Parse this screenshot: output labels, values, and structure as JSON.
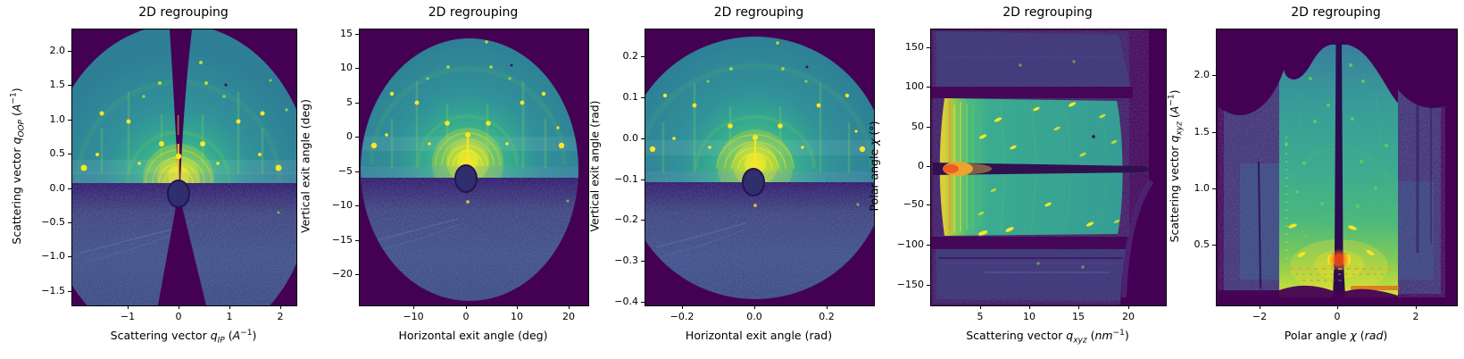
{
  "panels": [
    {
      "title": "2D regrouping",
      "ylabel": {
        "pre": "Scattering vector ",
        "var": "q",
        "sub": "OOP",
        "mid": " (",
        "unit": "A",
        "sup": "−1",
        "end": ")"
      },
      "xlabel": {
        "pre": "Scattering vector ",
        "var": "q",
        "sub": "IP",
        "mid": " (",
        "unit": "A",
        "sup": "−1",
        "end": ")"
      },
      "yticks": [
        "2.0",
        "1.5",
        "1.0",
        "0.5",
        "0.0",
        "−0.5",
        "−1.0",
        "−1.5"
      ],
      "xticks": [
        "−1",
        "0",
        "1",
        "2"
      ]
    },
    {
      "title": "2D regrouping",
      "ylabel": {
        "pre": "Vertical exit angle (deg)"
      },
      "xlabel": {
        "pre": "Horizontal exit angle (deg)"
      },
      "yticks": [
        "15",
        "10",
        "5",
        "0",
        "−5",
        "−10",
        "−15",
        "−20"
      ],
      "xticks": [
        "−10",
        "0",
        "10",
        "20"
      ]
    },
    {
      "title": "2D regrouping",
      "ylabel": {
        "pre": "Vertical exit angle (rad)"
      },
      "xlabel": {
        "pre": "Horizontal exit angle (rad)"
      },
      "yticks": [
        "0.2",
        "0.1",
        "0.0",
        "−0.1",
        "−0.2",
        "−0.3",
        "−0.4"
      ],
      "xticks": [
        "−0.2",
        "0.0",
        "0.2"
      ]
    },
    {
      "title": "2D regrouping",
      "ylabel": {
        "pre": "Polar angle ",
        "var": "χ",
        "mid": " (",
        "unit": "°",
        "end": ")"
      },
      "xlabel": {
        "pre": "Scattering vector ",
        "var": "q",
        "sub": "xyz",
        "mid": " (",
        "unit": "nm",
        "sup": "−1",
        "end": ")"
      },
      "yticks": [
        "150",
        "100",
        "50",
        "0",
        "−50",
        "−100",
        "−150"
      ],
      "xticks": [
        "5",
        "10",
        "15",
        "20"
      ]
    },
    {
      "title": "2D regrouping",
      "ylabel": {
        "pre": "Scattering vector ",
        "var": "q",
        "sub": "xyz",
        "mid": " (",
        "unit": "A",
        "sup": "−1",
        "end": ")"
      },
      "xlabel": {
        "pre": "Polar angle ",
        "var": "χ",
        "mid": " (",
        "unit": "rad",
        "end": ")"
      },
      "yticks": [
        "2.0",
        "1.5",
        "1.0",
        "0.5"
      ],
      "xticks": [
        "−2",
        "0",
        "2"
      ]
    }
  ],
  "colors": {
    "background": "#440154",
    "dome_teal": "#319199",
    "center_green": "#5ac368",
    "hot_yellow": "#fde725",
    "hot_orange": "#ee7a1f",
    "hot_red": "#e83c17",
    "lower_noise_blue": "#3c4d86",
    "text": "#000000"
  },
  "chart_data": [
    {
      "type": "heatmap",
      "title": "2D regrouping",
      "xlabel": "Scattering vector q_IP (A^-1)",
      "ylabel": "Scattering vector q_OOP (A^-1)",
      "xlim": [
        -2.07,
        2.28
      ],
      "ylim": [
        -1.69,
        2.33
      ],
      "xticks": [
        -1,
        0,
        1,
        2
      ],
      "yticks": [
        2.0,
        1.5,
        1.0,
        0.5,
        0.0,
        -0.5,
        -1.0,
        -1.5
      ],
      "colormap": "viridis",
      "features": "GIWAXS image regrouped to q-space: bright teal dome above sample horizon at q_OOP~0 with yellow Bragg spots, concentric scattering rings around beam center, dark missing wedge along the vertical q axis (bow-tie), dark beamstop blob at origin, speckled dark-blue lower half"
    },
    {
      "type": "heatmap",
      "title": "2D regrouping",
      "xlabel": "Horizontal exit angle (deg)",
      "ylabel": "Vertical exit angle (deg)",
      "xlim": [
        -20.9,
        23.7
      ],
      "ylim": [
        -24.3,
        15.8
      ],
      "xticks": [
        -10,
        0,
        10,
        20
      ],
      "yticks": [
        15,
        10,
        5,
        0,
        -5,
        -10,
        -15,
        -20
      ],
      "colormap": "viridis",
      "features": "Same detector image in exit-angle space (deg): full circular detector footprint, horizon at ~-5.5 deg, bright direct-beam spot at (0, -2.3), beamstop shadow, diffraction spots and rings in upper half, noisy dark lower half"
    },
    {
      "type": "heatmap",
      "title": "2D regrouping",
      "xlabel": "Horizontal exit angle (rad)",
      "ylabel": "Vertical exit angle (rad)",
      "xlim": [
        -0.3,
        0.33
      ],
      "ylim": [
        -0.41,
        0.27
      ],
      "xticks": [
        -0.2,
        0.0,
        0.2
      ],
      "yticks": [
        0.2,
        0.1,
        0.0,
        -0.1,
        -0.2,
        -0.3,
        -0.4
      ],
      "colormap": "viridis",
      "features": "Same detector image in exit-angle space (rad): circular footprint, horizon at ~-0.10 rad, bright beam spot at (0, -0.04), beamstop shadow, spots and rings above horizon, noisy dark lower half"
    },
    {
      "type": "heatmap",
      "title": "2D regrouping",
      "xlabel": "Scattering vector q_xyz (nm^-1)",
      "ylabel": "Polar angle chi (deg)",
      "xlim": [
        0,
        23.7
      ],
      "ylim": [
        -175,
        174
      ],
      "xticks": [
        5,
        10,
        15,
        20
      ],
      "yticks": [
        150,
        100,
        50,
        0,
        -50,
        -100,
        -150
      ],
      "colormap": "viridis",
      "features": "Caked (q, chi) regrouping: bright teal band for |chi|<90 deg from q~2 to q~19 nm^-1, intense yellow-orange streaks at low q (~3-4 nm^-1), dark horizontal gap at chi=0 with orange blob at low q, elongated Bragg spots, dim noisy bands for |chi|>90, dark curved empty region at high q"
    },
    {
      "type": "heatmap",
      "title": "2D regrouping",
      "xlabel": "Polar angle chi (rad)",
      "ylabel": "Scattering vector q_xyz (A^-1)",
      "xlim": [
        -3.14,
        3.07
      ],
      "ylim": [
        0.0,
        2.42
      ],
      "xticks": [
        -2,
        0,
        2
      ],
      "yticks": [
        2.0,
        1.5,
        1.0,
        0.5
      ],
      "colormap": "viridis",
      "features": "Polar (chi, q) regrouping: bright teal column for |chi|<1.5 rad brightening toward low q, dark vertical slit at chi=0, red-orange hot spot at (0, 0.4), orange streak rows near q~0.3, upward-curving ring arcs and green spots, noisy purple side columns, dark wavy regions at top (high q limit) and bottom (horizon)"
    }
  ]
}
